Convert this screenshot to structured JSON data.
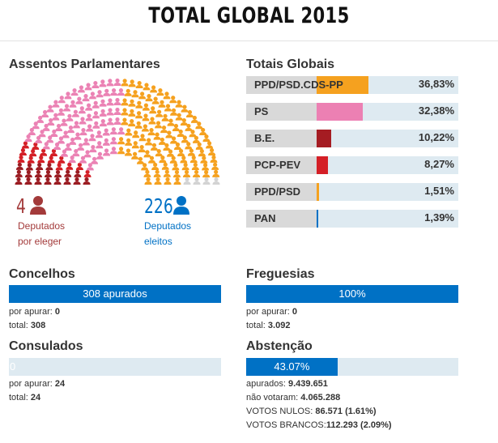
{
  "title": "TOTAL GLOBAL 2015",
  "assentos": {
    "heading": "Assentos Parlamentares",
    "por_eleger": {
      "count": "4",
      "label1": "Deputados",
      "label2": "por eleger",
      "color": "#a33a3a"
    },
    "eleitos": {
      "count": "226",
      "label1": "Deputados",
      "label2": "eleitos",
      "color": "#0071c5"
    },
    "seats": [
      {
        "party": "B.E.",
        "seats": 19,
        "color": "#9b1c22"
      },
      {
        "party": "PCP-PEV",
        "seats": 15,
        "color": "#d41f26"
      },
      {
        "party": "PS",
        "seats": 85,
        "color": "#eb82b4"
      },
      {
        "party": "PPD/PSD.CDS-PP",
        "seats": 104,
        "color": "#f5a11f"
      },
      {
        "party": "PPD/PSD",
        "seats": 2,
        "color": "#f5a11f"
      },
      {
        "party": "PAN",
        "seats": 1,
        "color": "#f5a11f"
      },
      {
        "party": "por eleger",
        "seats": 4,
        "color": "#d3d3d3"
      }
    ]
  },
  "totais": {
    "heading": "Totais Globais",
    "parties": [
      {
        "name": "PPD/PSD.CDS-PP",
        "pct": "36,83%",
        "value": 36.83,
        "color": "#f5a11f"
      },
      {
        "name": "PS",
        "pct": "32,38%",
        "value": 32.38,
        "color": "#ec80b3"
      },
      {
        "name": "B.E.",
        "pct": "10,22%",
        "value": 10.22,
        "color": "#a51c22"
      },
      {
        "name": "PCP-PEV",
        "pct": "8,27%",
        "value": 8.27,
        "color": "#d41f26"
      },
      {
        "name": "PPD/PSD",
        "pct": "1,51%",
        "value": 1.51,
        "color": "#f5a11f"
      },
      {
        "name": "PAN",
        "pct": "1,39%",
        "value": 1.39,
        "color": "#0071c5"
      }
    ]
  },
  "concelhos": {
    "heading": "Concelhos",
    "bar_label": "308 apurados",
    "progress": 100,
    "por_apurar_label": "por apurar: ",
    "por_apurar": "0",
    "total_label": "total: ",
    "total": "308"
  },
  "freguesias": {
    "heading": "Freguesias",
    "bar_label": "100%",
    "progress": 100,
    "por_apurar_label": "por apurar: ",
    "por_apurar": "0",
    "total_label": "total: ",
    "total": "3.092"
  },
  "consulados": {
    "heading": "Consulados",
    "bar_label": "0",
    "progress": 0,
    "por_apurar_label": "por apurar: ",
    "por_apurar": "24",
    "total_label": "total: ",
    "total": "24"
  },
  "abstencao": {
    "heading": "Abstenção",
    "bar_label": "43.07%",
    "progress": 43.07,
    "apurados_label": "apurados: ",
    "apurados": "9.439.651",
    "nao_votaram_label": "não votaram: ",
    "nao_votaram": "4.065.288",
    "nulos_label": "VOTOS NULOS: ",
    "nulos": "86.571 (1.61%)",
    "brancos_label": "VOTOS BRANCOS:",
    "brancos": "112.293 (2.09%)"
  }
}
